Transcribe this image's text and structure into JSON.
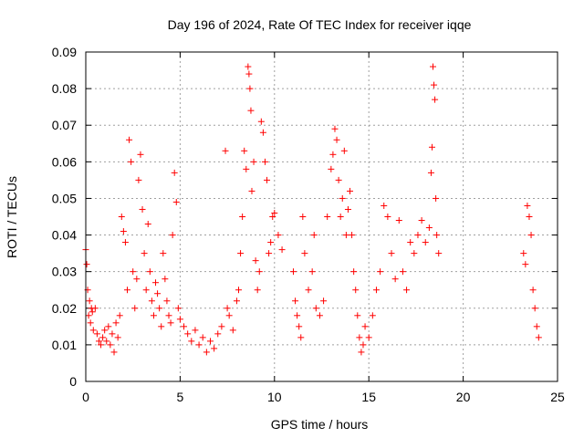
{
  "chart_data": {
    "type": "scatter",
    "title": "Day 196 of 2024, Rate Of TEC Index for receiver iqqe",
    "xlabel": "GPS time / hours",
    "ylabel": "ROTI / TECUs",
    "xlim": [
      0,
      25
    ],
    "ylim": [
      0,
      0.09
    ],
    "x_ticks": [
      "0",
      "5",
      "10",
      "15",
      "20",
      "25"
    ],
    "y_ticks": [
      "0",
      "0.01",
      "0.02",
      "0.03",
      "0.04",
      "0.05",
      "0.06",
      "0.07",
      "0.08",
      "0.09"
    ],
    "grid": true,
    "marker": "+",
    "marker_color": "#ff0000",
    "series": [
      {
        "values": [
          [
            0.0,
            0.036
          ],
          [
            0.05,
            0.032
          ],
          [
            0.1,
            0.025
          ],
          [
            0.15,
            0.018
          ],
          [
            0.2,
            0.022
          ],
          [
            0.25,
            0.016
          ],
          [
            0.3,
            0.02
          ],
          [
            0.35,
            0.019
          ],
          [
            0.4,
            0.014
          ],
          [
            0.5,
            0.02
          ],
          [
            0.6,
            0.013
          ],
          [
            0.7,
            0.011
          ],
          [
            0.8,
            0.01
          ],
          [
            0.9,
            0.012
          ],
          [
            1.0,
            0.014
          ],
          [
            1.1,
            0.011
          ],
          [
            1.2,
            0.015
          ],
          [
            1.3,
            0.01
          ],
          [
            1.4,
            0.013
          ],
          [
            1.5,
            0.008
          ],
          [
            1.6,
            0.016
          ],
          [
            1.7,
            0.012
          ],
          [
            1.8,
            0.018
          ],
          [
            1.9,
            0.045
          ],
          [
            2.0,
            0.041
          ],
          [
            2.1,
            0.038
          ],
          [
            2.2,
            0.025
          ],
          [
            2.3,
            0.066
          ],
          [
            2.4,
            0.06
          ],
          [
            2.5,
            0.03
          ],
          [
            2.6,
            0.02
          ],
          [
            2.7,
            0.028
          ],
          [
            2.8,
            0.055
          ],
          [
            2.9,
            0.062
          ],
          [
            3.0,
            0.047
          ],
          [
            3.1,
            0.035
          ],
          [
            3.2,
            0.025
          ],
          [
            3.3,
            0.043
          ],
          [
            3.4,
            0.03
          ],
          [
            3.5,
            0.022
          ],
          [
            3.6,
            0.018
          ],
          [
            3.7,
            0.027
          ],
          [
            3.8,
            0.024
          ],
          [
            3.9,
            0.02
          ],
          [
            4.0,
            0.015
          ],
          [
            4.1,
            0.035
          ],
          [
            4.2,
            0.028
          ],
          [
            4.3,
            0.022
          ],
          [
            4.4,
            0.018
          ],
          [
            4.5,
            0.016
          ],
          [
            4.6,
            0.04
          ],
          [
            4.7,
            0.057
          ],
          [
            4.8,
            0.049
          ],
          [
            4.9,
            0.02
          ],
          [
            5.0,
            0.017
          ],
          [
            5.2,
            0.015
          ],
          [
            5.4,
            0.013
          ],
          [
            5.6,
            0.011
          ],
          [
            5.8,
            0.014
          ],
          [
            6.0,
            0.01
          ],
          [
            6.2,
            0.012
          ],
          [
            6.4,
            0.008
          ],
          [
            6.6,
            0.011
          ],
          [
            6.8,
            0.009
          ],
          [
            7.0,
            0.013
          ],
          [
            7.2,
            0.015
          ],
          [
            7.4,
            0.063
          ],
          [
            7.5,
            0.02
          ],
          [
            7.6,
            0.018
          ],
          [
            7.8,
            0.014
          ],
          [
            8.0,
            0.022
          ],
          [
            8.1,
            0.025
          ],
          [
            8.2,
            0.035
          ],
          [
            8.3,
            0.045
          ],
          [
            8.4,
            0.063
          ],
          [
            8.5,
            0.058
          ],
          [
            8.6,
            0.086
          ],
          [
            8.65,
            0.084
          ],
          [
            8.7,
            0.08
          ],
          [
            8.75,
            0.074
          ],
          [
            8.8,
            0.052
          ],
          [
            8.9,
            0.06
          ],
          [
            9.0,
            0.033
          ],
          [
            9.1,
            0.025
          ],
          [
            9.2,
            0.03
          ],
          [
            9.3,
            0.071
          ],
          [
            9.4,
            0.068
          ],
          [
            9.5,
            0.06
          ],
          [
            9.6,
            0.055
          ],
          [
            9.7,
            0.035
          ],
          [
            9.8,
            0.038
          ],
          [
            9.9,
            0.045
          ],
          [
            10.0,
            0.046
          ],
          [
            10.2,
            0.04
          ],
          [
            10.4,
            0.036
          ],
          [
            11.0,
            0.03
          ],
          [
            11.1,
            0.022
          ],
          [
            11.2,
            0.018
          ],
          [
            11.3,
            0.015
          ],
          [
            11.4,
            0.012
          ],
          [
            11.5,
            0.045
          ],
          [
            11.6,
            0.035
          ],
          [
            11.8,
            0.025
          ],
          [
            12.0,
            0.03
          ],
          [
            12.1,
            0.04
          ],
          [
            12.2,
            0.02
          ],
          [
            12.4,
            0.018
          ],
          [
            12.6,
            0.022
          ],
          [
            12.8,
            0.045
          ],
          [
            13.0,
            0.058
          ],
          [
            13.1,
            0.062
          ],
          [
            13.2,
            0.069
          ],
          [
            13.3,
            0.066
          ],
          [
            13.4,
            0.055
          ],
          [
            13.5,
            0.045
          ],
          [
            13.6,
            0.05
          ],
          [
            13.7,
            0.063
          ],
          [
            13.8,
            0.04
          ],
          [
            13.9,
            0.047
          ],
          [
            14.0,
            0.052
          ],
          [
            14.1,
            0.04
          ],
          [
            14.2,
            0.03
          ],
          [
            14.3,
            0.025
          ],
          [
            14.4,
            0.018
          ],
          [
            14.5,
            0.012
          ],
          [
            14.6,
            0.008
          ],
          [
            14.7,
            0.01
          ],
          [
            14.8,
            0.015
          ],
          [
            15.0,
            0.012
          ],
          [
            15.2,
            0.018
          ],
          [
            15.4,
            0.025
          ],
          [
            15.6,
            0.03
          ],
          [
            15.8,
            0.048
          ],
          [
            16.0,
            0.045
          ],
          [
            16.2,
            0.035
          ],
          [
            16.4,
            0.028
          ],
          [
            16.6,
            0.044
          ],
          [
            16.8,
            0.03
          ],
          [
            17.0,
            0.025
          ],
          [
            17.2,
            0.038
          ],
          [
            17.4,
            0.035
          ],
          [
            17.6,
            0.04
          ],
          [
            17.8,
            0.044
          ],
          [
            18.0,
            0.038
          ],
          [
            18.2,
            0.042
          ],
          [
            18.3,
            0.057
          ],
          [
            18.35,
            0.064
          ],
          [
            18.4,
            0.086
          ],
          [
            18.45,
            0.081
          ],
          [
            18.5,
            0.077
          ],
          [
            18.55,
            0.05
          ],
          [
            18.6,
            0.04
          ],
          [
            18.7,
            0.035
          ],
          [
            23.2,
            0.035
          ],
          [
            23.3,
            0.032
          ],
          [
            23.4,
            0.048
          ],
          [
            23.5,
            0.045
          ],
          [
            23.6,
            0.04
          ],
          [
            23.7,
            0.025
          ],
          [
            23.8,
            0.02
          ],
          [
            23.9,
            0.015
          ],
          [
            24.0,
            0.012
          ]
        ]
      }
    ]
  }
}
